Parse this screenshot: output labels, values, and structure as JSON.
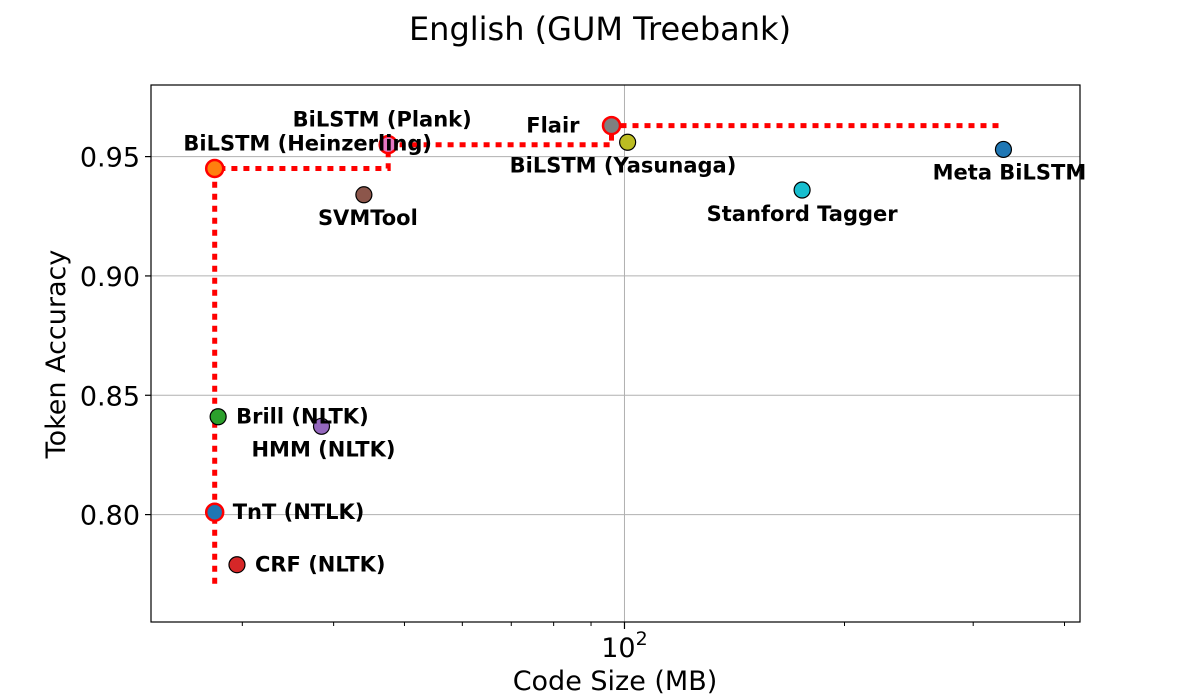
{
  "chart_data": {
    "type": "scatter",
    "title": "English (GUM Treebank)",
    "xlabel": "Code Size (MB)",
    "ylabel": "Token Accuracy",
    "xscale": "log",
    "xlim": [
      22.5,
      420
    ],
    "ylim": [
      0.755,
      0.98
    ],
    "grid": true,
    "xtick_major": {
      "value": 100,
      "label_base": "10",
      "label_exp": "2"
    },
    "yticks": [
      {
        "value": 0.8,
        "label": "0.80"
      },
      {
        "value": 0.85,
        "label": "0.85"
      },
      {
        "value": 0.9,
        "label": "0.90"
      },
      {
        "value": 0.95,
        "label": "0.95"
      }
    ],
    "points": [
      {
        "name": "TnT (NTLK)",
        "x": 27.5,
        "y": 0.801,
        "color": "#1f77b4",
        "pareto": true,
        "label_pos": "right"
      },
      {
        "name": "CRF (NLTK)",
        "x": 29.5,
        "y": 0.779,
        "color": "#d62728",
        "pareto": false,
        "label_pos": "right"
      },
      {
        "name": "Brill (NLTK)",
        "x": 27.8,
        "y": 0.841,
        "color": "#2ca02c",
        "pareto": false,
        "label_pos": "right"
      },
      {
        "name": "HMM (NLTK)",
        "x": 38.5,
        "y": 0.837,
        "color": "#9467bd",
        "pareto": false,
        "label_pos": "below-right"
      },
      {
        "name": "SVMTool",
        "x": 44,
        "y": 0.934,
        "color": "#8c564b",
        "pareto": false,
        "label_pos": "below"
      },
      {
        "name": "BiLSTM (Heinzerling)",
        "x": 27.5,
        "y": 0.945,
        "color": "#ff7f0e",
        "pareto": true,
        "label_pos": "above"
      },
      {
        "name": "BiLSTM (Plank)",
        "x": 47.5,
        "y": 0.955,
        "color": "#e377c2",
        "pareto": true,
        "label_pos": "above"
      },
      {
        "name": "Flair",
        "x": 96,
        "y": 0.963,
        "color": "#7f7f7f",
        "pareto": true,
        "label_pos": "left"
      },
      {
        "name": "BiLSTM (Yasunaga)",
        "x": 101,
        "y": 0.956,
        "color": "#bcbd22",
        "pareto": false,
        "label_pos": "below"
      },
      {
        "name": "Stanford Tagger",
        "x": 175,
        "y": 0.936,
        "color": "#17becf",
        "pareto": false,
        "label_pos": "below"
      },
      {
        "name": "Meta BiLSTM",
        "x": 330,
        "y": 0.953,
        "color": "#1f77b4",
        "pareto": false,
        "label_pos": "below"
      }
    ],
    "pareto_front": [
      {
        "x": 27.5,
        "y": 0.771
      },
      {
        "x": 27.5,
        "y": 0.801
      },
      {
        "x": 27.5,
        "y": 0.945
      },
      {
        "x": 47.5,
        "y": 0.945
      },
      {
        "x": 47.5,
        "y": 0.955
      },
      {
        "x": 96,
        "y": 0.955
      },
      {
        "x": 96,
        "y": 0.963
      },
      {
        "x": 330,
        "y": 0.963
      }
    ],
    "pareto_color": "#ff0000"
  }
}
